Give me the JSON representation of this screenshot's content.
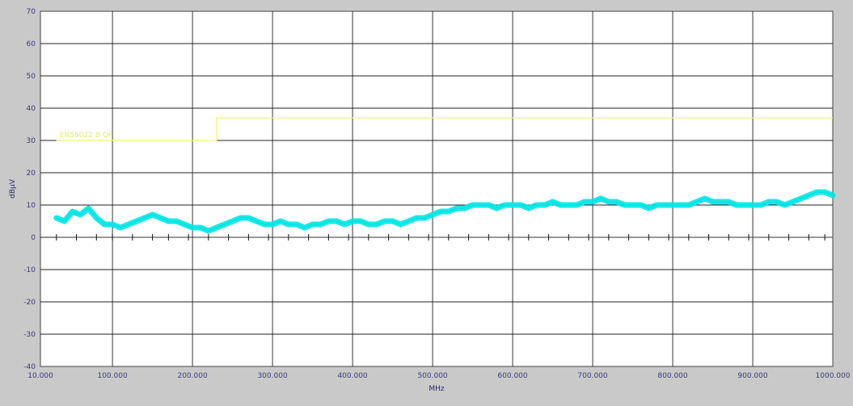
{
  "chart_data": {
    "type": "line",
    "title": "",
    "xlabel": "MHz",
    "ylabel": "dBµV",
    "xlim": [
      10,
      1000
    ],
    "ylim": [
      -40,
      70
    ],
    "grid": true,
    "x_tick_values": [
      10,
      100,
      200,
      300,
      400,
      500,
      600,
      700,
      800,
      900,
      1000
    ],
    "x_tick_labels": [
      "10.000",
      "100.000",
      "200.000",
      "300.000",
      "400.000",
      "500.000",
      "600.000",
      "700.000",
      "800.000",
      "900.000",
      "1000.000"
    ],
    "y_tick_values": [
      70,
      60,
      50,
      40,
      30,
      20,
      10,
      0,
      -10,
      -20,
      -30,
      -40
    ],
    "y_tick_labels": [
      "70",
      "60",
      "50",
      "40",
      "30",
      "20",
      "10",
      "0",
      "-10",
      "-20",
      "-30",
      "-40"
    ],
    "limit_line": {
      "label": "EN55022 B QP",
      "color": "#f2f27a",
      "x": [
        30,
        230,
        230,
        1000
      ],
      "y": [
        30,
        30,
        37,
        37
      ]
    },
    "marker_row_y": 0,
    "marker_xs": [
      30,
      55,
      80,
      100,
      125,
      150,
      170,
      195,
      220,
      245,
      270,
      295,
      320,
      345,
      370,
      395,
      420,
      445,
      470,
      495,
      520,
      545,
      570,
      595,
      620,
      645,
      670,
      695,
      720,
      745,
      770,
      795,
      820,
      845,
      870,
      895,
      920,
      945,
      970,
      990
    ],
    "series": [
      {
        "color": "#00e5e5",
        "x": [
          30,
          40,
          50,
          60,
          70,
          80,
          90,
          100,
          110,
          120,
          130,
          140,
          150,
          160,
          170,
          180,
          190,
          200,
          210,
          220,
          230,
          240,
          250,
          260,
          270,
          280,
          290,
          300,
          310,
          320,
          330,
          340,
          350,
          360,
          370,
          380,
          390,
          400,
          410,
          420,
          430,
          440,
          450,
          460,
          470,
          480,
          490,
          500,
          510,
          520,
          530,
          540,
          550,
          560,
          570,
          580,
          590,
          600,
          610,
          620,
          630,
          640,
          650,
          660,
          670,
          680,
          690,
          700,
          710,
          720,
          730,
          740,
          750,
          760,
          770,
          780,
          790,
          800,
          810,
          820,
          830,
          840,
          850,
          860,
          870,
          880,
          890,
          900,
          910,
          920,
          930,
          940,
          950,
          960,
          970,
          980,
          990,
          1000
        ],
        "y": [
          6,
          5,
          8,
          7,
          9,
          6,
          4,
          4,
          3,
          4,
          5,
          6,
          7,
          6,
          5,
          5,
          4,
          3,
          3,
          2,
          3,
          4,
          5,
          6,
          6,
          5,
          4,
          4,
          5,
          4,
          4,
          3,
          4,
          4,
          5,
          5,
          4,
          5,
          5,
          4,
          4,
          5,
          5,
          4,
          5,
          6,
          6,
          7,
          8,
          8,
          9,
          9,
          10,
          10,
          10,
          9,
          10,
          10,
          10,
          9,
          10,
          10,
          11,
          10,
          10,
          10,
          11,
          11,
          12,
          11,
          11,
          10,
          10,
          10,
          9,
          10,
          10,
          10,
          10,
          10,
          11,
          12,
          11,
          11,
          11,
          10,
          10,
          10,
          10,
          11,
          11,
          10,
          11,
          12,
          13,
          14,
          14,
          13
        ]
      }
    ]
  }
}
